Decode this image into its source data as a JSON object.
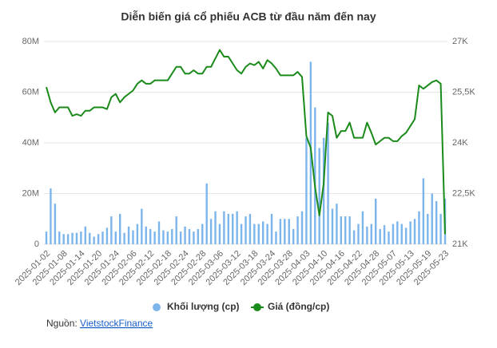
{
  "chart_data": {
    "type": "combo",
    "title": "Diễn biến giá cổ phiếu ACB từ đầu năm đến nay",
    "categories": [
      "2025-01-02",
      null,
      null,
      null,
      "2025-01-08",
      null,
      null,
      null,
      "2025-01-14",
      null,
      null,
      null,
      "2025-01-20",
      null,
      null,
      null,
      "2025-01-24",
      null,
      null,
      null,
      "2025-02-06",
      null,
      null,
      null,
      "2025-02-12",
      null,
      null,
      null,
      "2025-02-18",
      null,
      null,
      null,
      "2025-02-24",
      null,
      null,
      null,
      "2025-02-28",
      null,
      null,
      null,
      "2025-03-06",
      null,
      null,
      null,
      "2025-03-12",
      null,
      null,
      null,
      "2025-03-18",
      null,
      null,
      null,
      "2025-03-24",
      null,
      null,
      null,
      "2025-03-28",
      null,
      null,
      null,
      "2025-04-03",
      null,
      null,
      null,
      "2025-04-10",
      null,
      null,
      null,
      "2025-04-16",
      null,
      null,
      null,
      "2025-04-22",
      null,
      null,
      null,
      "2025-04-28",
      null,
      null,
      null,
      "2025-05-07",
      null,
      null,
      null,
      "2025-05-13",
      null,
      null,
      null,
      "2025-05-19",
      null,
      null,
      null,
      "2025-05-23"
    ],
    "series": [
      {
        "name": "Khối lượng (cp)",
        "type": "bar",
        "color": "#7cb5ec",
        "values": [
          5000000,
          22000000,
          16000000,
          5000000,
          4000000,
          4000000,
          4500000,
          4500000,
          5000000,
          7000000,
          4500000,
          3000000,
          4000000,
          5000000,
          6500000,
          11000000,
          5000000,
          12000000,
          4500000,
          7000000,
          5500000,
          8000000,
          14000000,
          7000000,
          6000000,
          5000000,
          9000000,
          5500000,
          5000000,
          6000000,
          11000000,
          5000000,
          7000000,
          6000000,
          5000000,
          6000000,
          8000000,
          24000000,
          10000000,
          13000000,
          8000000,
          13000000,
          12000000,
          12000000,
          13000000,
          8000000,
          11000000,
          12000000,
          8000000,
          8000000,
          9000000,
          8000000,
          12000000,
          5000000,
          10000000,
          10000000,
          10000000,
          6000000,
          11000000,
          13000000,
          42000000,
          72000000,
          54000000,
          38000000,
          42000000,
          48000000,
          14000000,
          16000000,
          11000000,
          11000000,
          11000000,
          5500000,
          8000000,
          13000000,
          7000000,
          8000000,
          18000000,
          6000000,
          7500000,
          5000000,
          8000000,
          9000000,
          8000000,
          6500000,
          9000000,
          10000000,
          13000000,
          26000000,
          12000000,
          20000000,
          17000000,
          12000000,
          18000000
        ]
      },
      {
        "name": "Giá (đồng/cp)",
        "type": "line",
        "axis": "y2",
        "color": "#1a8a1a",
        "values": [
          25650,
          25200,
          24900,
          25050,
          25050,
          25050,
          24800,
          24850,
          24800,
          24950,
          24950,
          25050,
          25050,
          25050,
          25000,
          25350,
          25450,
          25200,
          25350,
          25450,
          25550,
          25750,
          25850,
          25750,
          25750,
          25850,
          25850,
          25850,
          25850,
          26050,
          26250,
          26250,
          26050,
          26050,
          26150,
          26050,
          26050,
          26250,
          26250,
          26500,
          26750,
          26550,
          26550,
          26350,
          26150,
          26050,
          26250,
          26350,
          26300,
          26400,
          26200,
          26450,
          26350,
          26200,
          26000,
          26000,
          26000,
          26000,
          26100,
          25950,
          24200,
          23850,
          22700,
          21850,
          22800,
          24900,
          24800,
          24150,
          24350,
          24350,
          24600,
          24150,
          24150,
          24150,
          24600,
          24300,
          23950,
          24050,
          24150,
          24150,
          24050,
          24050,
          24200,
          24300,
          24500,
          24700,
          25700,
          25600,
          25700,
          25800,
          25850,
          25750,
          21300
        ]
      }
    ],
    "ylim": [
      0,
      80000000
    ],
    "yticks": [
      {
        "value": 0,
        "label": "0"
      },
      {
        "value": 20000000,
        "label": "20M"
      },
      {
        "value": 40000000,
        "label": "40M"
      },
      {
        "value": 60000000,
        "label": "60M"
      },
      {
        "value": 80000000,
        "label": "80M"
      }
    ],
    "y2lim": [
      21000,
      27000
    ],
    "y2ticks": [
      {
        "value": 21000,
        "label": "21K"
      },
      {
        "value": 22500,
        "label": "22,5K"
      },
      {
        "value": 24000,
        "label": "24K"
      },
      {
        "value": 25500,
        "label": "25,5K"
      },
      {
        "value": 27000,
        "label": "27K"
      }
    ],
    "grid": true,
    "legend": "bottom"
  },
  "source": {
    "prefix": "Nguồn: ",
    "link": "VietstockFinance"
  }
}
